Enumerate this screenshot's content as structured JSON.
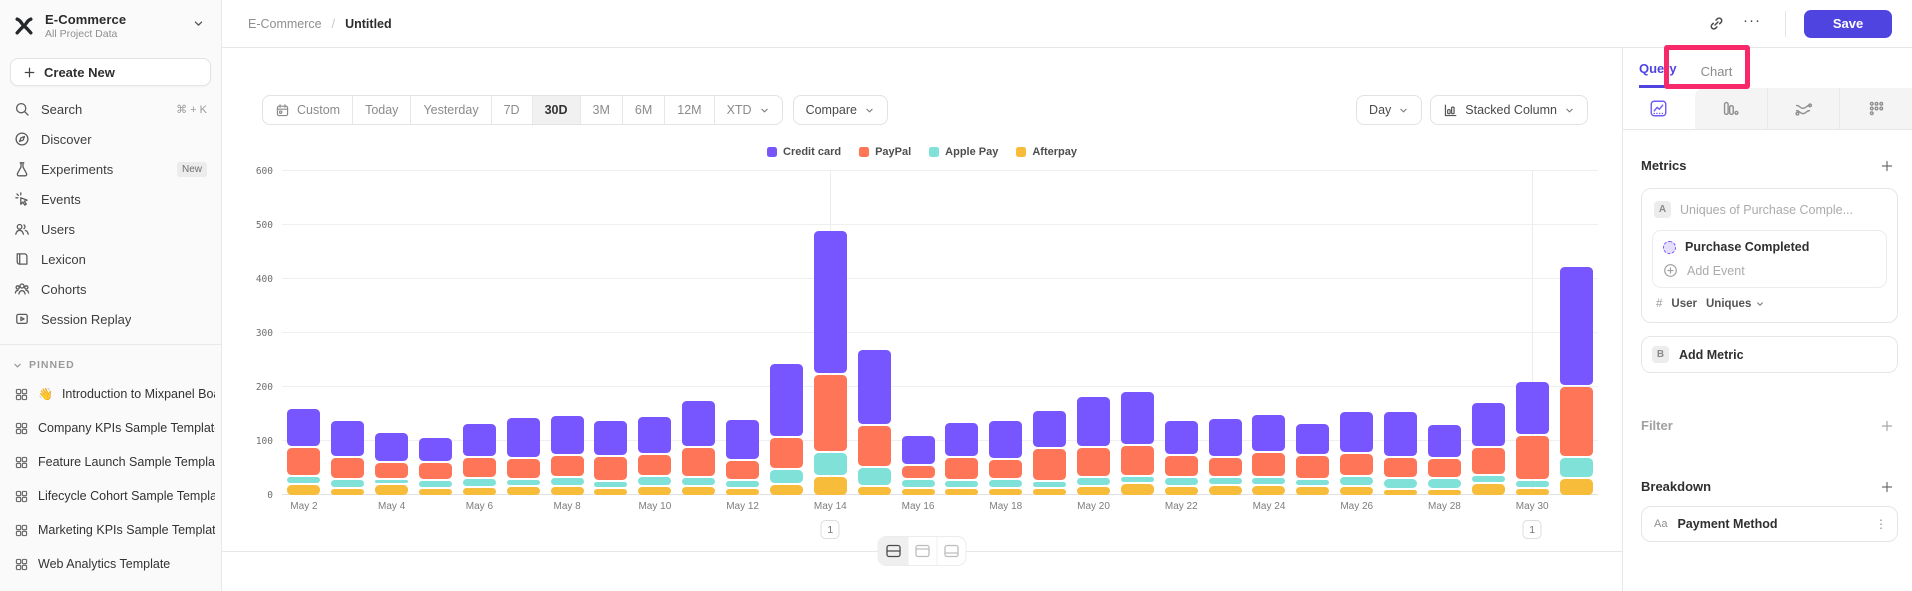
{
  "sidebar": {
    "workspace": {
      "name": "E-Commerce",
      "scope": "All Project Data"
    },
    "create_new": "Create New",
    "nav": [
      {
        "label": "Search",
        "icon": "search-icon",
        "shortcut": "⌘ + K"
      },
      {
        "label": "Discover",
        "icon": "compass-icon"
      },
      {
        "label": "Experiments",
        "icon": "flask-icon",
        "badge": "New"
      },
      {
        "label": "Events",
        "icon": "events-icon"
      },
      {
        "label": "Users",
        "icon": "users-icon"
      },
      {
        "label": "Lexicon",
        "icon": "book-icon"
      },
      {
        "label": "Cohorts",
        "icon": "cohorts-icon"
      },
      {
        "label": "Session Replay",
        "icon": "replay-icon"
      }
    ],
    "pinned": {
      "header": "PINNED",
      "items": [
        {
          "emoji": "👋",
          "label": "Introduction to Mixpanel Boards",
          "icon": "board-icon"
        },
        {
          "label": "Company KPIs Sample Template",
          "icon": "board-icon"
        },
        {
          "label": "Feature Launch Sample Template",
          "icon": "board-icon"
        },
        {
          "label": "Lifecycle Cohort Sample Template",
          "icon": "board-icon"
        },
        {
          "label": "Marketing KPIs Sample Template",
          "icon": "board-icon"
        },
        {
          "label": "Web Analytics Template",
          "icon": "board-icon"
        }
      ]
    }
  },
  "topbar": {
    "breadcrumb": {
      "project": "E-Commerce",
      "separator": "/",
      "page": "Untitled"
    },
    "more_icon": "···",
    "save": "Save"
  },
  "toolbar": {
    "ranges": [
      "Custom",
      "Today",
      "Yesterday",
      "7D",
      "30D",
      "3M",
      "6M",
      "12M",
      "XTD"
    ],
    "active_range": "30D",
    "compare": "Compare",
    "granularity": "Day",
    "chart_type": "Stacked Column"
  },
  "chart_data": {
    "type": "bar",
    "subtype": "stacked-column",
    "title": "",
    "xlabel": "",
    "ylabel": "",
    "ylim": [
      0,
      600
    ],
    "yticks": [
      0,
      100,
      200,
      300,
      400,
      500,
      600
    ],
    "grid": true,
    "legend_position": "top-center",
    "xtick_every": 2,
    "categories": [
      "May 2",
      "May 3",
      "May 4",
      "May 5",
      "May 6",
      "May 7",
      "May 8",
      "May 9",
      "May 10",
      "May 11",
      "May 12",
      "May 13",
      "May 14",
      "May 15",
      "May 16",
      "May 17",
      "May 18",
      "May 19",
      "May 20",
      "May 21",
      "May 22",
      "May 23",
      "May 24",
      "May 25",
      "May 26",
      "May 27",
      "May 28",
      "May 29",
      "May 30",
      "May 31"
    ],
    "series": [
      {
        "name": "Credit card",
        "color": "#7856FF",
        "values": [
          70,
          65,
          52,
          43,
          59,
          72,
          70,
          63,
          67,
          83,
          72,
          134,
          264,
          137,
          52,
          61,
          69,
          67,
          91,
          96,
          61,
          67,
          67,
          56,
          74,
          82,
          59,
          80,
          97,
          218
        ]
      },
      {
        "name": "PayPal",
        "color": "#FF7557",
        "values": [
          50,
          37,
          28,
          29,
          35,
          34,
          37,
          43,
          38,
          52,
          34,
          55,
          139,
          74,
          22,
          39,
          33,
          57,
          53,
          53,
          38,
          35,
          43,
          39,
          40,
          35,
          33,
          47,
          80,
          129
        ]
      },
      {
        "name": "Apple Pay",
        "color": "#80E1D9",
        "values": [
          10,
          13,
          5,
          10,
          13,
          10,
          13,
          8,
          14,
          14,
          10,
          25,
          41,
          33,
          12,
          12,
          12,
          9,
          12,
          10,
          12,
          10,
          10,
          10,
          14,
          16,
          16,
          12,
          10,
          34
        ]
      },
      {
        "name": "Afterpay",
        "color": "#F8BC3B",
        "values": [
          19,
          11,
          19,
          12,
          13,
          15,
          15,
          12,
          15,
          14,
          12,
          18,
          34,
          14,
          12,
          11,
          12,
          12,
          15,
          20,
          15,
          17,
          17,
          15,
          15,
          10,
          10,
          20,
          12,
          30
        ]
      }
    ],
    "annotations": [
      {
        "category": "May 14",
        "label": "1"
      },
      {
        "category": "May 30",
        "label": "1"
      }
    ]
  },
  "panel": {
    "tabs": [
      {
        "label": "Query",
        "active": true
      },
      {
        "label": "Chart",
        "active": false
      }
    ],
    "icon_tabs": [
      "insights-icon",
      "funnels-icon",
      "flows-icon",
      "retention-icon"
    ],
    "metrics": {
      "header": "Metrics",
      "row_badge": "A",
      "row_placeholder": "Uniques of Purchase Comple...",
      "event_name": "Purchase Completed",
      "add_event": "Add Event",
      "agg": {
        "hash": "#",
        "entity": "User",
        "type": "Uniques"
      },
      "add_metric": {
        "badge": "B",
        "label": "Add Metric"
      }
    },
    "filter": {
      "header": "Filter"
    },
    "breakdown": {
      "header": "Breakdown",
      "item": {
        "type": "Aa",
        "label": "Payment Method",
        "menu_icon": "⋮"
      }
    }
  },
  "layout_toggle": {
    "options": [
      "split-view",
      "chart-only",
      "table-only"
    ],
    "active": "split-view"
  },
  "colors": {
    "accent": "#4f44e0",
    "annotation_pink": "#f7296a",
    "bar_purple": "#7856FF",
    "bar_coral": "#FF7557",
    "bar_teal": "#80E1D9",
    "bar_amber": "#F8BC3B"
  }
}
